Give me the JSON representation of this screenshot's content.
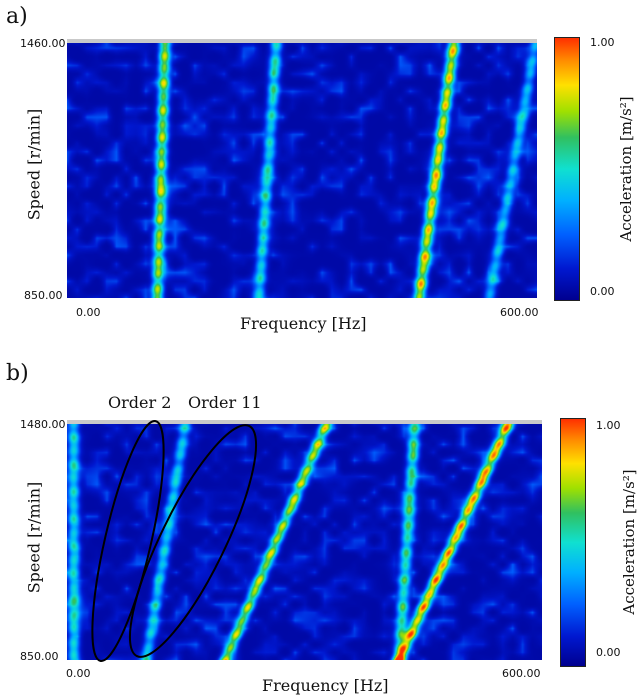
{
  "panels": [
    {
      "label": "a)",
      "chart_data": {
        "type": "heatmap",
        "xlabel": "Frequency [Hz]",
        "ylabel": "Speed [r/min]",
        "xlim": [
          0,
          600
        ],
        "ylim": [
          850,
          1460
        ],
        "x_tick_labels": [
          "0.00",
          "600.00"
        ],
        "y_tick_labels": [
          "850.00",
          "1460.00"
        ],
        "colorbar": {
          "label": "Acceleration [m/s²]",
          "min_label": "0.00",
          "max_label": "1.00",
          "range": [
            0,
            1
          ]
        },
        "colormap": [
          "#00008f",
          "#0018d0",
          "#0060ff",
          "#00b0ff",
          "#10e0d0",
          "#30c060",
          "#a0e000",
          "#ffe000",
          "#ff9000",
          "#ff3000"
        ],
        "ridges": [
          {
            "freq_low": 115,
            "freq_high": 125,
            "peak": 0.72
          },
          {
            "freq_low": 245,
            "freq_high": 268,
            "peak": 0.45
          },
          {
            "freq_low": 450,
            "freq_high": 495,
            "peak": 0.85
          },
          {
            "freq_low": 540,
            "freq_high": 600,
            "peak": 0.35
          }
        ]
      }
    },
    {
      "label": "b)",
      "annotations": [
        "Order 2",
        "Order 11"
      ],
      "chart_data": {
        "type": "heatmap",
        "xlabel": "Frequency [Hz]",
        "ylabel": "Speed [r/min]",
        "xlim": [
          0,
          600
        ],
        "ylim": [
          850,
          1480
        ],
        "x_tick_labels": [
          "0.00",
          "600.00"
        ],
        "y_tick_labels": [
          "850.00",
          "1480.00"
        ],
        "colorbar": {
          "label": "Acceleration [m/s²]",
          "min_label": "0.00",
          "max_label": "1.00",
          "range": [
            0,
            1
          ]
        },
        "colormap": [
          "#00008f",
          "#0018d0",
          "#0060ff",
          "#00b0ff",
          "#10e0d0",
          "#30c060",
          "#a0e000",
          "#ffe000",
          "#ff9000",
          "#ff3000"
        ],
        "ridges": [
          {
            "freq_low": 8,
            "freq_high": 8,
            "peak": 0.45
          },
          {
            "freq_low": 100,
            "freq_high": 150,
            "peak": 0.4
          },
          {
            "freq_low": 200,
            "freq_high": 330,
            "peak": 0.75
          },
          {
            "freq_low": 420,
            "freq_high": 440,
            "peak": 0.55
          },
          {
            "freq_low": 420,
            "freq_high": 560,
            "peak": 0.95
          }
        ]
      }
    }
  ]
}
